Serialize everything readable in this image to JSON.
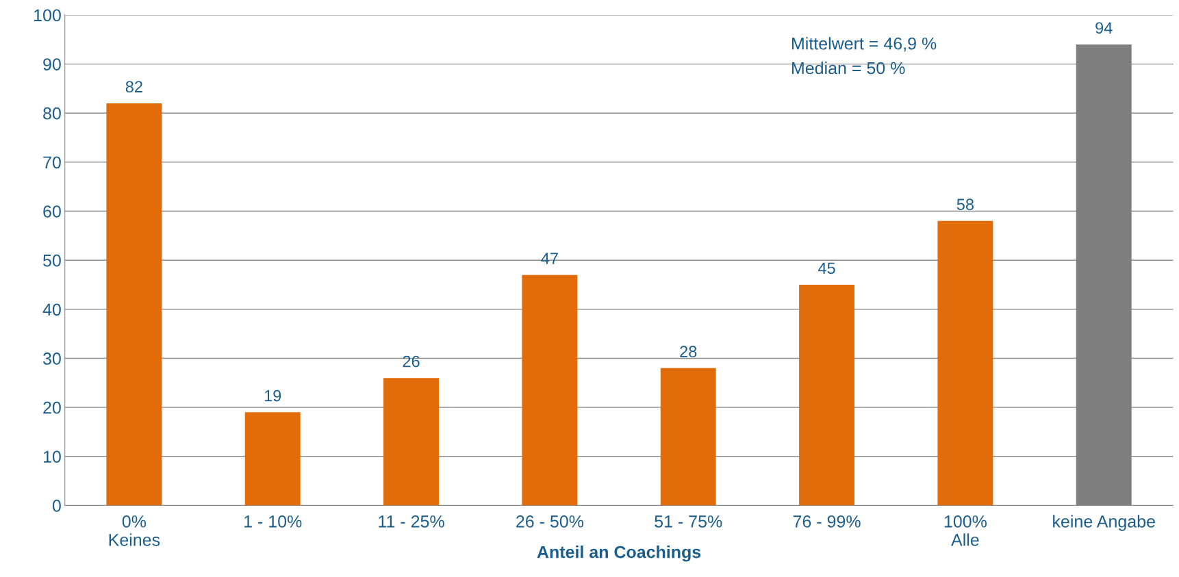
{
  "chart_data": {
    "type": "bar",
    "xlabel": "Anteil an Coachings",
    "categories": [
      "0%\nKeines",
      "1 - 10%",
      "11 - 25%",
      "26 - 50%",
      "51 - 75%",
      "76 - 99%",
      "100%\nAlle",
      "keine Angabe"
    ],
    "values": [
      82,
      19,
      26,
      47,
      28,
      45,
      58,
      94
    ],
    "colors": [
      "#e36c0a",
      "#e36c0a",
      "#e36c0a",
      "#e36c0a",
      "#e36c0a",
      "#e36c0a",
      "#e36c0a",
      "#7f7f7f"
    ],
    "ylim": [
      0,
      100
    ],
    "yticks": [
      0,
      10,
      20,
      30,
      40,
      50,
      60,
      70,
      80,
      90,
      100
    ],
    "grid": "y",
    "data_labels": true,
    "annotations": [
      "Mittelwert = 46,9 %",
      "Median = 50 %"
    ]
  }
}
